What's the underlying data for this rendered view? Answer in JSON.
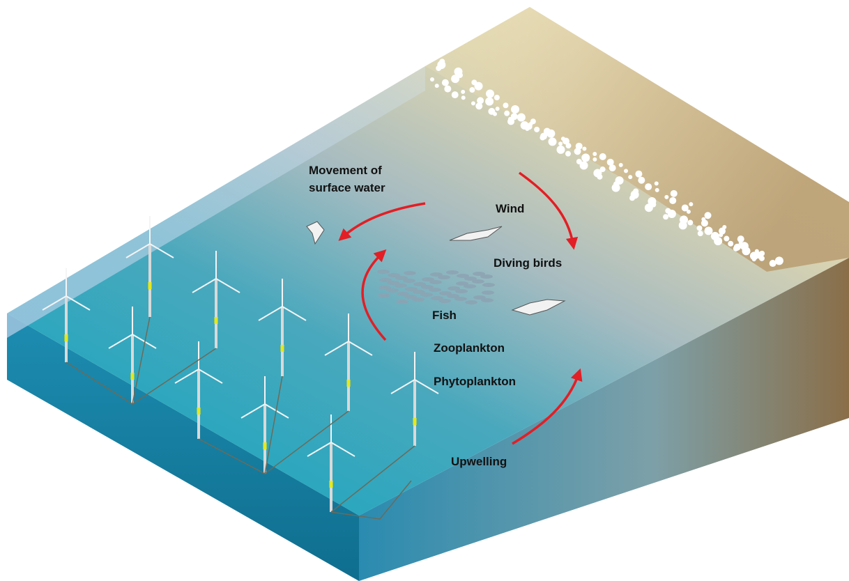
{
  "labels": {
    "movement": [
      "Movement of",
      "surface water"
    ],
    "wind": "Wind",
    "diving_birds": "Diving birds",
    "fish": "Fish",
    "zooplankton": "Zooplankton",
    "phytoplankton": "Phytoplankton",
    "upwelling": "Upwelling"
  }
}
